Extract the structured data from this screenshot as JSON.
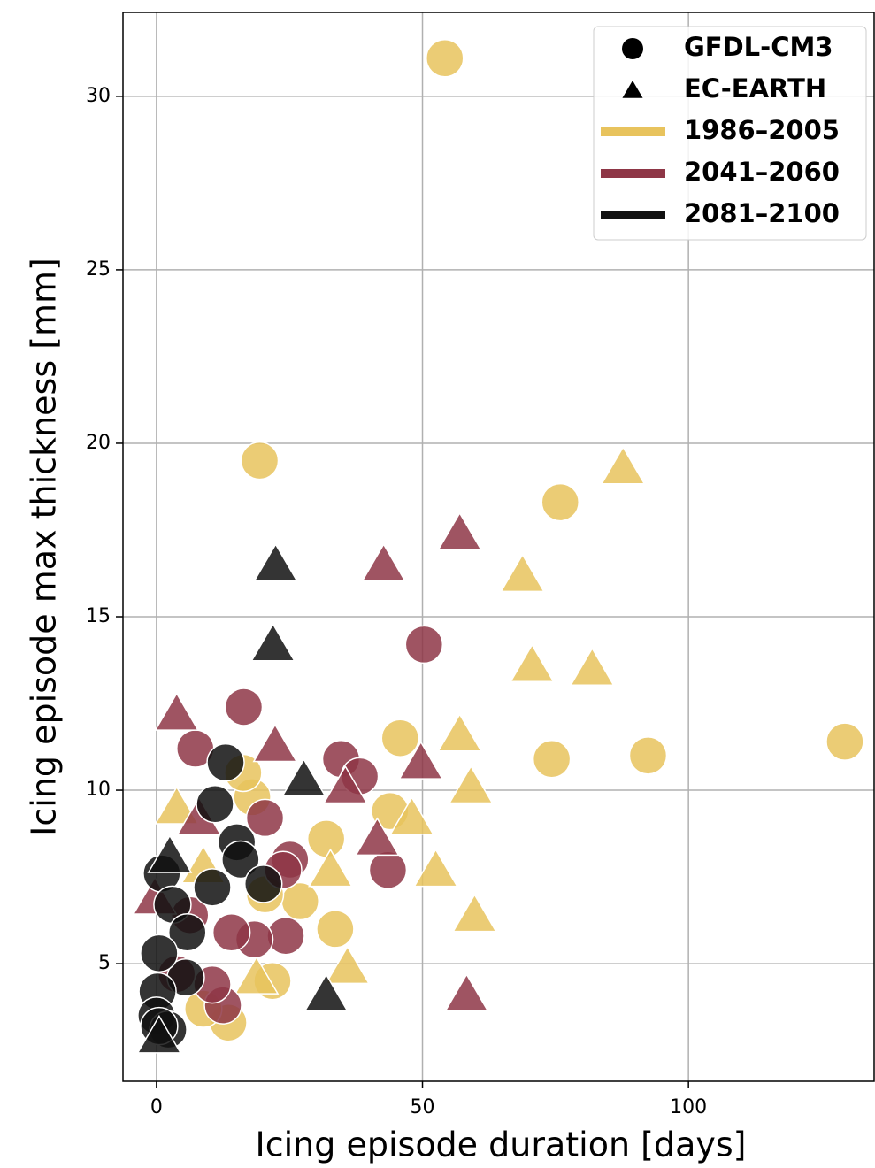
{
  "chart_data": {
    "type": "scatter",
    "x_label": "Icing episode duration [days]",
    "y_label": "Icing episode max thickness [mm]",
    "xlim": [
      -6.3,
      134.9
    ],
    "ylim": [
      1.61,
      32.42
    ],
    "xticks": [
      0,
      50,
      100
    ],
    "yticks": [
      5,
      10,
      15,
      20,
      25,
      30
    ],
    "grid": true,
    "legend": "upper right",
    "models": [
      {
        "name": "GFDL-CM3",
        "marker": "circle"
      },
      {
        "name": "EC-EARTH",
        "marker": "triangle"
      }
    ],
    "periods": [
      {
        "name": "1986–2005",
        "color": "#e8c35d"
      },
      {
        "name": "2041–2060",
        "color": "#8e3646"
      },
      {
        "name": "2081–2100",
        "color": "#111111"
      }
    ],
    "series": [
      {
        "model": "GFDL-CM3",
        "period": "1986–2005",
        "x": [
          54.2,
          19.4,
          75.9,
          129.4,
          45.8,
          74.3,
          92.4,
          43.9,
          31.9,
          33.6,
          27,
          21.8,
          13.5,
          18,
          16.3,
          20.4,
          8.8
        ],
        "y": [
          31.1,
          19.5,
          18.3,
          11.4,
          11.5,
          10.9,
          11.0,
          9.4,
          8.6,
          6.0,
          6.8,
          4.5,
          3.3,
          9.8,
          10.5,
          7.0,
          3.7
        ]
      },
      {
        "model": "EC-EARTH",
        "period": "1986–2005",
        "x": [
          87.7,
          68.8,
          70.6,
          81.9,
          57,
          59.1,
          52.5,
          59.8,
          48,
          32.7,
          35.9,
          3.8,
          18.8,
          8.8
        ],
        "y": [
          19.3,
          16.2,
          13.6,
          13.5,
          11.6,
          10.1,
          7.7,
          6.4,
          9.2,
          7.7,
          4.9,
          9.5,
          4.6,
          7.8
        ]
      },
      {
        "model": "GFDL-CM3",
        "period": "2041–2060",
        "x": [
          50.3,
          16.4,
          7.3,
          34.7,
          38.2,
          43.5,
          20.4,
          25.1,
          23.8,
          24.3,
          18.4,
          14.1,
          12.5,
          10.5,
          6.3,
          3.8
        ],
        "y": [
          14.2,
          12.4,
          11.2,
          10.9,
          10.4,
          7.7,
          9.2,
          8.0,
          7.7,
          5.8,
          5.7,
          5.9,
          3.8,
          4.4,
          6.4,
          4.7
        ]
      },
      {
        "model": "EC-EARTH",
        "period": "2041–2060",
        "x": [
          57,
          42.7,
          3.8,
          22.3,
          49.7,
          35.5,
          41.5,
          58.3,
          8,
          -0.3
        ],
        "y": [
          17.4,
          16.5,
          12.2,
          11.3,
          10.8,
          10.1,
          8.6,
          4.1,
          9.2,
          6.9
        ]
      },
      {
        "model": "GFDL-CM3",
        "period": "2081–2100",
        "x": [
          13,
          11,
          15.1,
          15.8,
          20.1,
          10.5,
          1,
          3,
          5.8,
          5.5,
          0.5,
          0.2,
          0,
          2.2,
          0.5
        ],
        "y": [
          10.8,
          9.6,
          8.5,
          8.0,
          7.3,
          7.2,
          7.6,
          6.7,
          5.9,
          4.6,
          5.3,
          4.2,
          3.5,
          3.1,
          3.2
        ]
      },
      {
        "model": "EC-EARTH",
        "period": "2081–2100",
        "x": [
          22.4,
          21.9,
          27.7,
          31.9,
          2.5,
          0.5
        ],
        "y": [
          16.5,
          14.2,
          10.3,
          4.1,
          8.1,
          2.9
        ]
      }
    ]
  }
}
